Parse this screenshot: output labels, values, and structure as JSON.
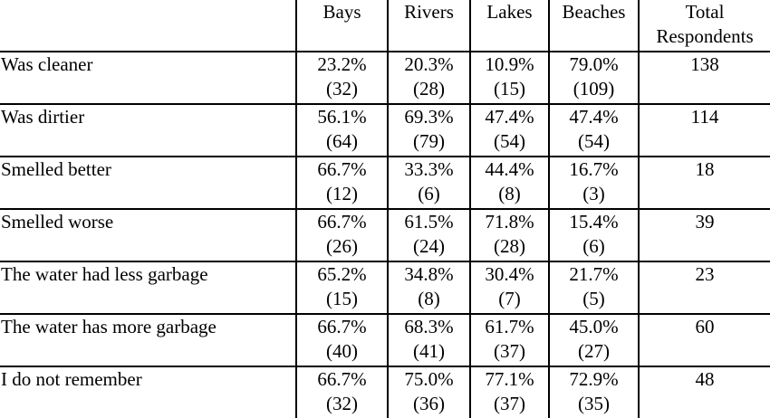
{
  "columns": [
    "",
    "Bays",
    "Rivers",
    "Lakes",
    "Beaches",
    "Total Respondents"
  ],
  "total_header_lines": [
    "Total",
    "Respondents"
  ],
  "rows": [
    {
      "label": "Was cleaner",
      "cells": [
        {
          "pct": "23.2%",
          "n": "(32)"
        },
        {
          "pct": "20.3%",
          "n": "(28)"
        },
        {
          "pct": "10.9%",
          "n": "(15)"
        },
        {
          "pct": "79.0%",
          "n": "(109)"
        }
      ],
      "total": "138"
    },
    {
      "label": "Was dirtier",
      "cells": [
        {
          "pct": "56.1%",
          "n": "(64)"
        },
        {
          "pct": "69.3%",
          "n": "(79)"
        },
        {
          "pct": "47.4%",
          "n": "(54)"
        },
        {
          "pct": "47.4%",
          "n": "(54)"
        }
      ],
      "total": "114"
    },
    {
      "label": "Smelled better",
      "cells": [
        {
          "pct": "66.7%",
          "n": "(12)"
        },
        {
          "pct": "33.3%",
          "n": "(6)"
        },
        {
          "pct": "44.4%",
          "n": "(8)"
        },
        {
          "pct": "16.7%",
          "n": "(3)"
        }
      ],
      "total": "18"
    },
    {
      "label": "Smelled worse",
      "cells": [
        {
          "pct": "66.7%",
          "n": "(26)"
        },
        {
          "pct": "61.5%",
          "n": "(24)"
        },
        {
          "pct": "71.8%",
          "n": "(28)"
        },
        {
          "pct": "15.4%",
          "n": "(6)"
        }
      ],
      "total": "39"
    },
    {
      "label": "The water had less garbage",
      "cells": [
        {
          "pct": "65.2%",
          "n": "(15)"
        },
        {
          "pct": "34.8%",
          "n": "(8)"
        },
        {
          "pct": "30.4%",
          "n": "(7)"
        },
        {
          "pct": "21.7%",
          "n": "(5)"
        }
      ],
      "total": "23"
    },
    {
      "label": "The water has more garbage",
      "cells": [
        {
          "pct": "66.7%",
          "n": "(40)"
        },
        {
          "pct": "68.3%",
          "n": "(41)"
        },
        {
          "pct": "61.7%",
          "n": "(37)"
        },
        {
          "pct": "45.0%",
          "n": "(27)"
        }
      ],
      "total": "60"
    },
    {
      "label": "I do not remember",
      "cells": [
        {
          "pct": "66.7%",
          "n": "(32)"
        },
        {
          "pct": "75.0%",
          "n": "(36)"
        },
        {
          "pct": "77.1%",
          "n": "(37)"
        },
        {
          "pct": "72.9%",
          "n": "(35)"
        }
      ],
      "total": "48"
    }
  ]
}
